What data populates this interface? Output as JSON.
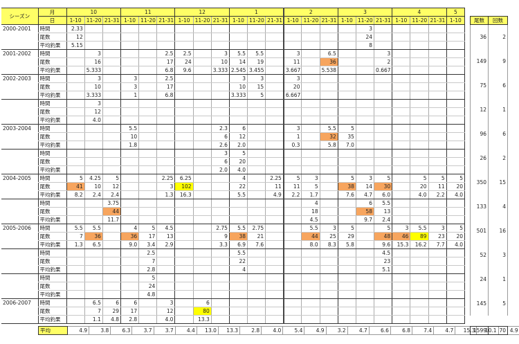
{
  "header": {
    "season": "シーズン",
    "month": "月",
    "day": "日",
    "months": [
      "10",
      "11",
      "12",
      "1",
      "2",
      "3",
      "4",
      "5"
    ],
    "days": [
      "1-10",
      "11-20",
      "21-31",
      "1-10",
      "11-20",
      "21-31",
      "1-10",
      "11-20",
      "21-31",
      "1-10",
      "11-20",
      "21-31",
      "1-10",
      "11-20",
      "21-31",
      "1-10",
      "11-20",
      "21-31",
      "1-10",
      "11-20",
      "21-31",
      "1-10"
    ],
    "total_count": "尾数",
    "total_trips": "回数"
  },
  "labels": {
    "time": "時間",
    "count": "尾数",
    "avg": "平均釣果",
    "average_row": "平均"
  },
  "colors": {
    "header": "#ffff66",
    "orange": "#f7a55e",
    "yellow": "#ffff00"
  },
  "groups": [
    {
      "season": "2000-2001",
      "count": "36",
      "trips": "2",
      "rows": [
        {
          "label": "時間",
          "cells": {
            "0": "2.33",
            "16": "3"
          }
        },
        {
          "label": "尾数",
          "cells": {
            "0": "12",
            "16": "24"
          }
        },
        {
          "label": "平均釣果",
          "cells": {
            "0": "5.15",
            "16": "8"
          }
        }
      ]
    },
    {
      "season": "2001-2002",
      "count": "149",
      "trips": "9",
      "rows": [
        {
          "label": "時間",
          "cells": {
            "1": "3",
            "5": "2.5",
            "6": "2.5",
            "8": "3",
            "9": "5.5",
            "10": "5.5",
            "12": "3",
            "14": "6.5",
            "17": "3"
          }
        },
        {
          "label": "尾数",
          "cells": {
            "1": "16",
            "5": "17",
            "6": "24",
            "8": "10",
            "9": "14",
            "10": "19",
            "12": "11",
            "14": "36",
            "17": "2"
          },
          "highlight": {
            "14": "orange"
          }
        },
        {
          "label": "平均釣果",
          "cells": {
            "1": "5.333",
            "5": "6.8",
            "6": "9.6",
            "8": "3.333",
            "9": "2.545",
            "10": "3.455",
            "12": "3.667",
            "14": "5.538",
            "17": "0.667"
          }
        }
      ]
    },
    {
      "season": "2002-2003",
      "count": "75",
      "trips": "6",
      "rows": [
        {
          "label": "時間",
          "cells": {
            "1": "3",
            "3": "3",
            "5": "2.5",
            "9": "3",
            "10": "3",
            "12": "3"
          }
        },
        {
          "label": "尾数",
          "cells": {
            "1": "10",
            "3": "3",
            "5": "17",
            "9": "10",
            "10": "15",
            "12": "20"
          }
        },
        {
          "label": "平均釣果",
          "cells": {
            "1": "3.333",
            "3": "1",
            "5": "6.8",
            "9": "3.333",
            "10": "5",
            "12": "6.667"
          }
        }
      ]
    },
    {
      "season": "",
      "count": "12",
      "trips": "1",
      "rows": [
        {
          "label": "時間",
          "cells": {
            "1": "3"
          }
        },
        {
          "label": "尾数",
          "cells": {
            "1": "12"
          }
        },
        {
          "label": "平均釣果",
          "cells": {
            "1": "4.0"
          }
        }
      ]
    },
    {
      "season": "2003-2004",
      "count": "96",
      "trips": "6",
      "rows": [
        {
          "label": "時間",
          "cells": {
            "3": "5.5",
            "8": "2.3",
            "9": "6",
            "12": "3",
            "14": "5.5",
            "15": "5"
          }
        },
        {
          "label": "尾数",
          "cells": {
            "3": "10",
            "8": "6",
            "9": "12",
            "12": "1",
            "14": "32",
            "15": "35"
          },
          "highlight": {
            "14": "orange"
          }
        },
        {
          "label": "平均釣果",
          "cells": {
            "3": "1.8",
            "8": "2.6",
            "9": "2.0",
            "12": "0.3",
            "14": "5.8",
            "15": "7.0"
          }
        }
      ]
    },
    {
      "season": "",
      "count": "26",
      "trips": "2",
      "rows": [
        {
          "label": "時間",
          "cells": {
            "8": "3",
            "9": "5"
          }
        },
        {
          "label": "尾数",
          "cells": {
            "8": "6",
            "9": "20"
          }
        },
        {
          "label": "平均釣果",
          "cells": {
            "8": "2.0",
            "9": "4.0"
          }
        }
      ]
    },
    {
      "season": "2004-2005",
      "count": "350",
      "trips": "15",
      "rows": [
        {
          "label": "時間",
          "cells": {
            "0": "5",
            "1": "4.25",
            "2": "5",
            "5": "2.25",
            "6": "6.25",
            "9": "4",
            "11": "2.25",
            "12": "5",
            "13": "3",
            "15": "5",
            "16": "3",
            "17": "5",
            "19": "5",
            "20": "5",
            "21": "5"
          }
        },
        {
          "label": "尾数",
          "cells": {
            "0": "41",
            "1": "10",
            "2": "12",
            "5": "3",
            "6": "102",
            "9": "22",
            "11": "11",
            "12": "11",
            "13": "5",
            "15": "38",
            "16": "14",
            "17": "30",
            "19": "20",
            "20": "11",
            "21": "20"
          },
          "highlight": {
            "0": "orange",
            "6": "yellow",
            "15": "orange",
            "17": "orange"
          }
        },
        {
          "label": "平均釣果",
          "cells": {
            "0": "8.2",
            "1": "2.4",
            "2": "2.4",
            "5": "1.3",
            "6": "16.3",
            "9": "5.5",
            "11": "4.9",
            "12": "2.2",
            "13": "1.7",
            "15": "7.6",
            "16": "4.7",
            "17": "6.0",
            "19": "4.0",
            "20": "2.2",
            "21": "4.0"
          }
        }
      ]
    },
    {
      "season": "",
      "count": "133",
      "trips": "4",
      "rows": [
        {
          "label": "時間",
          "cells": {
            "2": "3.75",
            "13": "4",
            "16": "6",
            "17": "5.5"
          }
        },
        {
          "label": "尾数",
          "cells": {
            "2": "44",
            "13": "18",
            "16": "58",
            "17": "13"
          },
          "highlight": {
            "2": "orange",
            "16": "orange"
          }
        },
        {
          "label": "平均釣果",
          "cells": {
            "2": "11.7",
            "13": "4.5",
            "16": "9.7",
            "17": "2.4"
          }
        }
      ]
    },
    {
      "season": "2005-2006",
      "count": "501",
      "trips": "16",
      "rows": [
        {
          "label": "時間",
          "cells": {
            "0": "5.5",
            "1": "5.5",
            "3": "4",
            "4": "5",
            "5": "4.5",
            "8": "2.75",
            "9": "5.5",
            "10": "2.75",
            "13": "5.5",
            "14": "3",
            "15": "5",
            "17": "5",
            "18": "3",
            "19": "5.5",
            "20": "3",
            "21": "5"
          }
        },
        {
          "label": "尾数",
          "cells": {
            "0": "7",
            "1": "36",
            "3": "36",
            "4": "17",
            "5": "13",
            "8": "9",
            "9": "38",
            "10": "21",
            "13": "44",
            "14": "25",
            "15": "29",
            "17": "48",
            "18": "46",
            "19": "89",
            "20": "23",
            "21": "20"
          },
          "highlight": {
            "1": "orange",
            "3": "orange",
            "9": "orange",
            "13": "orange",
            "17": "orange",
            "18": "orange",
            "19": "yellow"
          }
        },
        {
          "label": "平均釣果",
          "cells": {
            "0": "1.3",
            "1": "6.5",
            "3": "9.0",
            "4": "3.4",
            "5": "2.9",
            "8": "3.3",
            "9": "6.9",
            "10": "7.6",
            "13": "8.0",
            "14": "8.3",
            "15": "5.8",
            "17": "9.6",
            "18": "15.3",
            "19": "16.2",
            "20": "7.7",
            "21": "4.0"
          }
        }
      ]
    },
    {
      "season": "",
      "count": "52",
      "trips": "3",
      "rows": [
        {
          "label": "時間",
          "cells": {
            "4": "2.5",
            "9": "5.5",
            "17": "4.5"
          }
        },
        {
          "label": "尾数",
          "cells": {
            "4": "7",
            "9": "22",
            "17": "23"
          }
        },
        {
          "label": "平均釣果",
          "cells": {
            "4": "2.8",
            "9": "4",
            "17": "5.1"
          }
        }
      ]
    },
    {
      "season": "",
      "count": "24",
      "trips": "1",
      "rows": [
        {
          "label": "時間",
          "cells": {
            "4": "5"
          }
        },
        {
          "label": "尾数",
          "cells": {
            "4": "24"
          }
        },
        {
          "label": "平均釣果",
          "cells": {
            "4": "4.8"
          }
        }
      ]
    },
    {
      "season": "2006-2007",
      "count": "145",
      "trips": "5",
      "rows": [
        {
          "label": "時間",
          "cells": {
            "1": "6.5",
            "2": "6",
            "3": "6",
            "5": "3",
            "7": "6"
          }
        },
        {
          "label": "尾数",
          "cells": {
            "1": "7",
            "2": "29",
            "3": "17",
            "5": "12",
            "7": "80"
          },
          "highlight": {
            "7": "yellow"
          }
        },
        {
          "label": "平均釣果",
          "cells": {
            "1": "1.1",
            "2": "4.8",
            "3": "2.8",
            "5": "4.0",
            "7": "13.3"
          }
        }
      ]
    }
  ],
  "averages": [
    "4.9",
    "3.8",
    "6.3",
    "3.7",
    "3.7",
    "4.4",
    "13.0",
    "13.3",
    "2.8",
    "4.0",
    "5.4",
    "4.9",
    "3.2",
    "4.7",
    "6.6",
    "6.8",
    "7.4",
    "4.7",
    "15.3",
    "10.1",
    "4.9",
    "4.0"
  ],
  "totals": {
    "count": "1599",
    "trips": "70"
  }
}
